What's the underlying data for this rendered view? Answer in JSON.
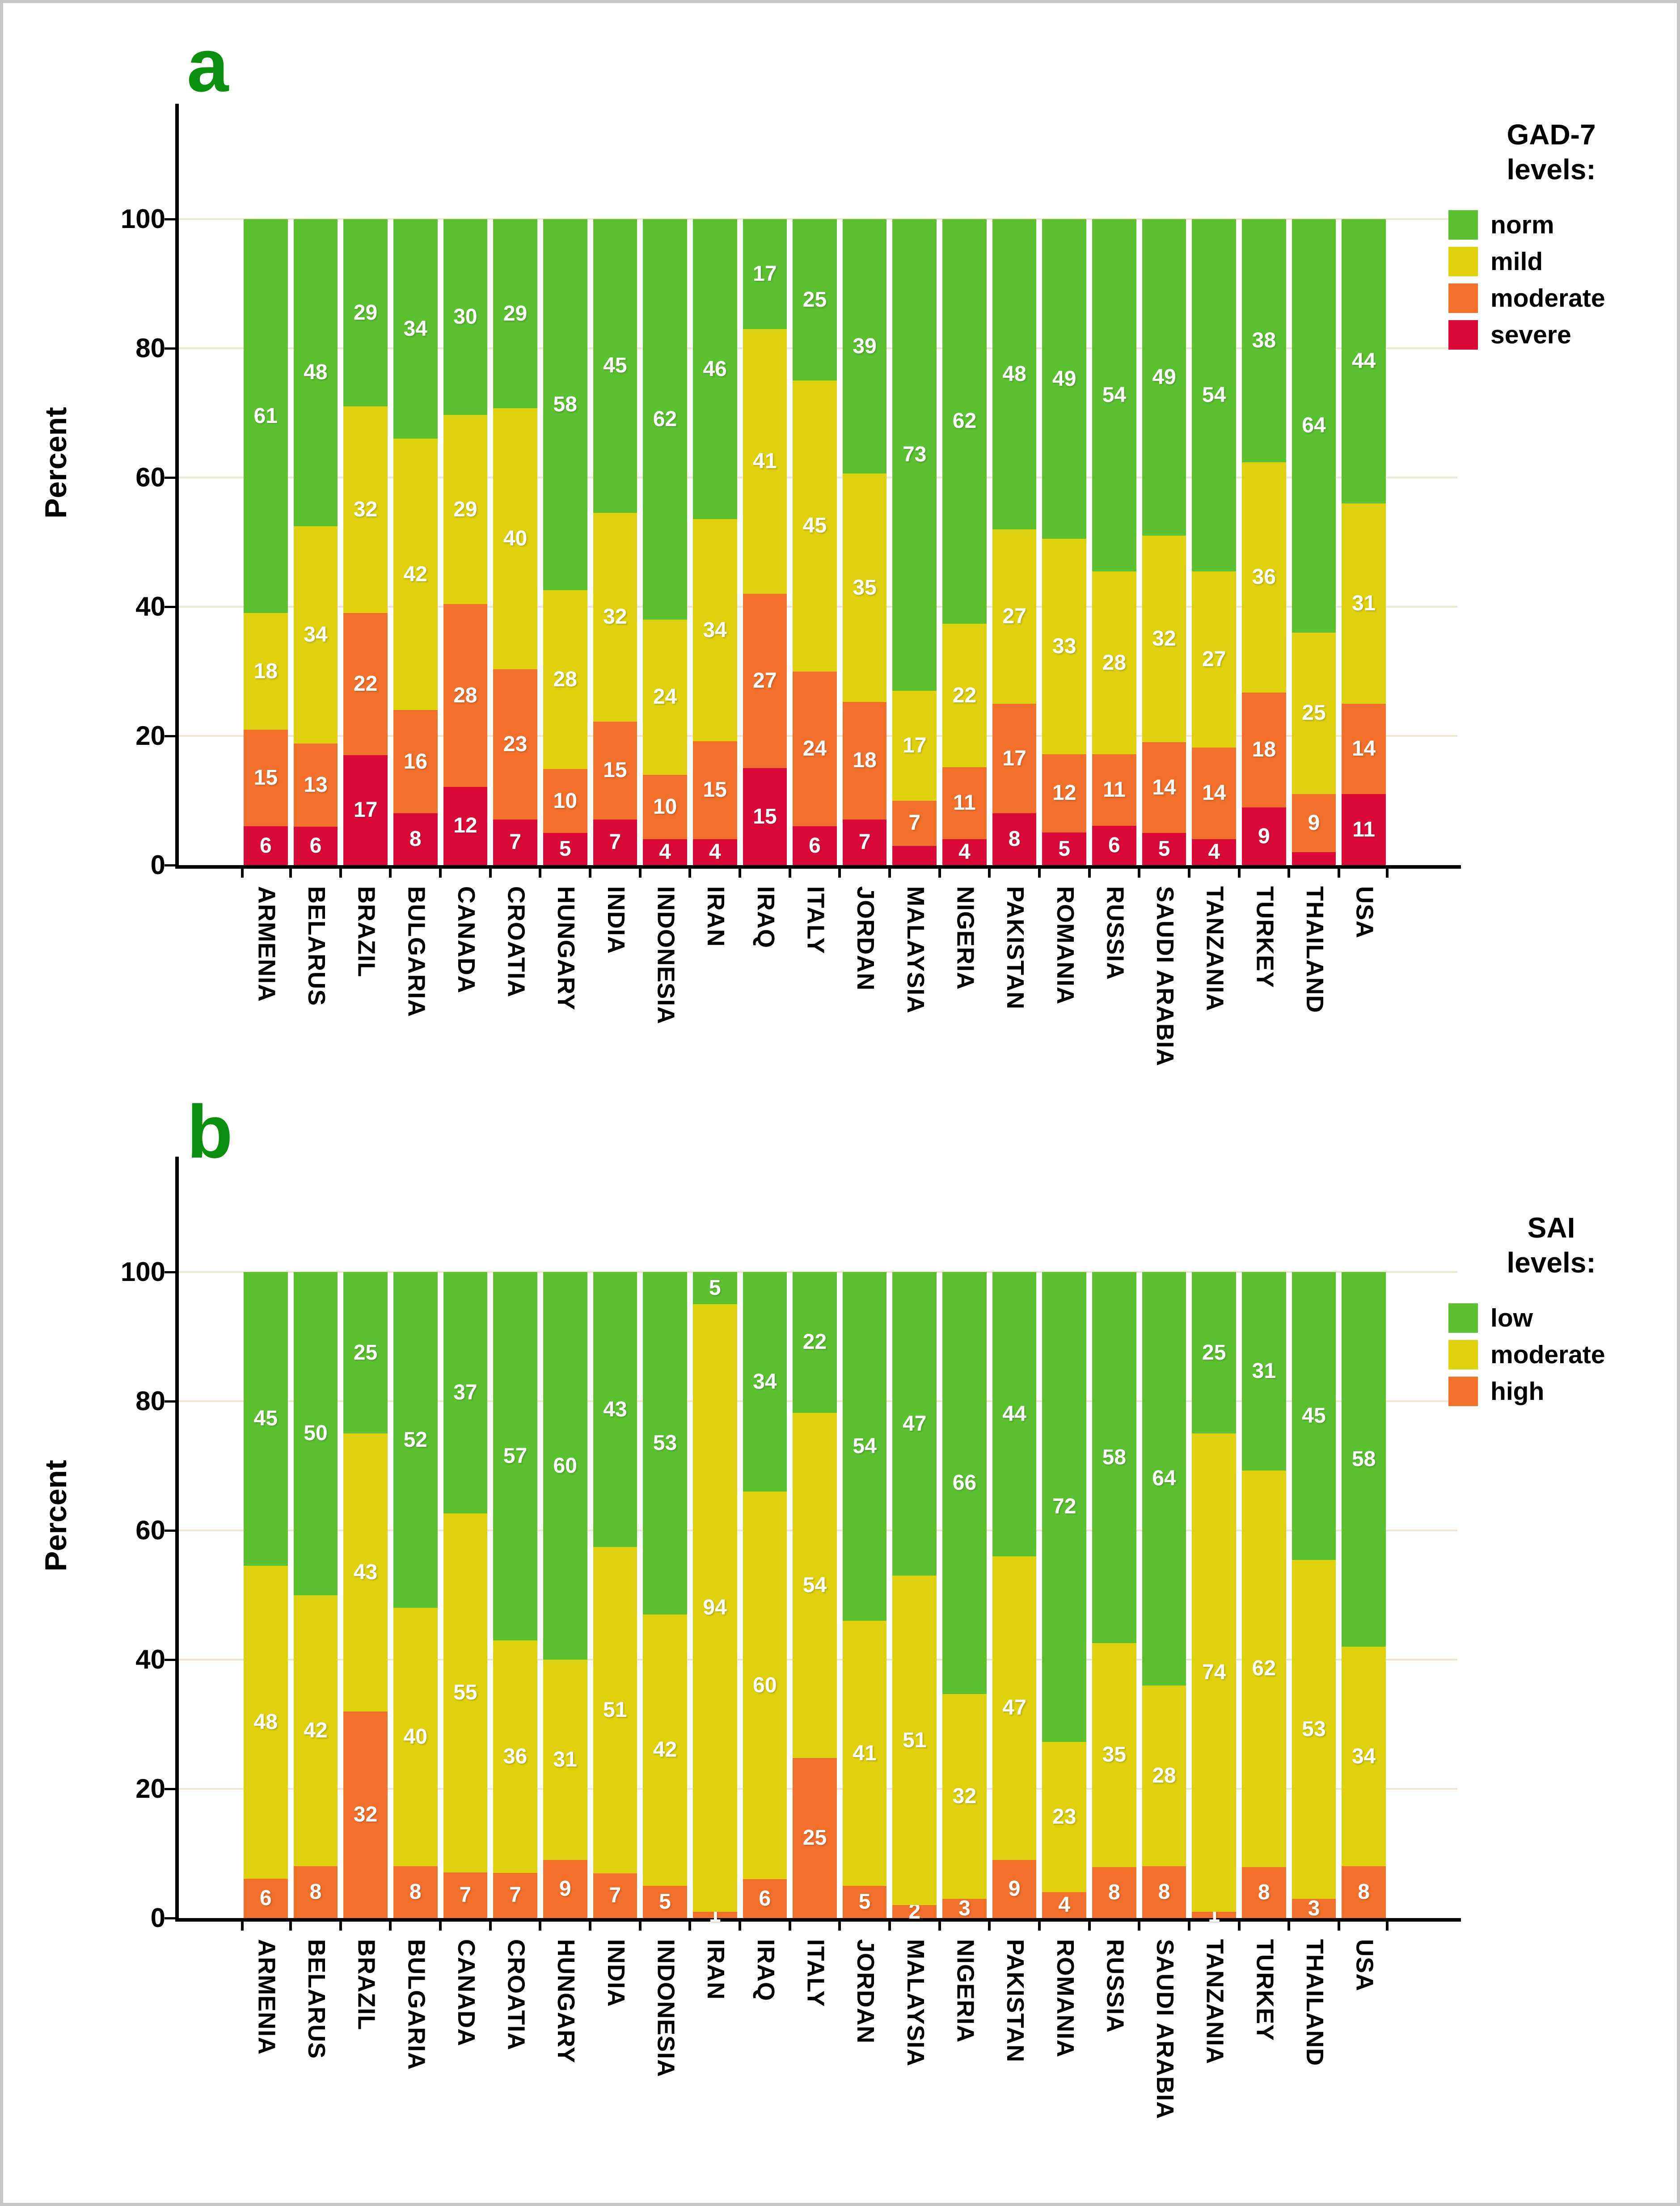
{
  "y_axis": {
    "title": "Percent",
    "ticks": [
      0,
      20,
      40,
      60,
      80,
      100
    ],
    "range": [
      0,
      100
    ]
  },
  "styles": {
    "norm_low_green": "#5bc130",
    "mild_moderate_yellow": "#dfd10d",
    "moderate_high_orange": "#f2702b",
    "severe_red": "#da0938",
    "panel_letter_green": "#0a8f0f",
    "gridline_cream": "#efe7d0",
    "axis_black": "#000000",
    "value_label_white": "#ffffff",
    "frame_gray": "#c7c7c7"
  },
  "panels": [
    {
      "letter": "a",
      "legend_title_line1": "GAD-7",
      "legend_title_line2": "levels:"
    },
    {
      "letter": "b",
      "legend_title_line1": "SAI",
      "legend_title_line2": "levels:"
    }
  ],
  "chart_data": [
    {
      "type": "bar",
      "stacked": true,
      "units": "percent",
      "title": "GAD-7 levels:",
      "ylabel": "Percent",
      "ylim": [
        0,
        100
      ],
      "grid": "horizontal",
      "legend_position": "right",
      "categories": [
        "ARMENIA",
        "BELARUS",
        "BRAZIL",
        "BULGARIA",
        "CANADA",
        "CROATIA",
        "HUNGARY",
        "INDIA",
        "INDONESIA",
        "IRAN",
        "IRAQ",
        "ITALY",
        "JORDAN",
        "MALAYSIA",
        "NIGERIA",
        "PAKISTAN",
        "ROMANIA",
        "RUSSIA",
        "SAUDI ARABIA",
        "TANZANIA",
        "TURKEY",
        "THAILAND",
        "USA"
      ],
      "series": [
        {
          "name": "norm",
          "color": "#5bc130",
          "values": [
            61,
            48,
            29,
            34,
            30,
            29,
            58,
            45,
            62,
            46,
            17,
            25,
            39,
            73,
            62,
            48,
            49,
            54,
            49,
            54,
            38,
            64,
            44
          ]
        },
        {
          "name": "mild",
          "color": "#dfd10d",
          "values": [
            18,
            34,
            32,
            42,
            29,
            40,
            28,
            32,
            24,
            34,
            41,
            45,
            35,
            17,
            22,
            27,
            33,
            28,
            32,
            27,
            36,
            25,
            31
          ]
        },
        {
          "name": "moderate",
          "color": "#f2702b",
          "values": [
            15,
            13,
            22,
            16,
            28,
            23,
            10,
            15,
            10,
            15,
            27,
            24,
            18,
            7,
            11,
            17,
            12,
            11,
            14,
            14,
            18,
            9,
            14
          ]
        },
        {
          "name": "severe",
          "color": "#da0938",
          "values": [
            6,
            6,
            17,
            8,
            12,
            7,
            5,
            7,
            4,
            4,
            15,
            6,
            7,
            3,
            4,
            8,
            5,
            6,
            5,
            4,
            9,
            2,
            11
          ],
          "unlabeled_indices": [
            13,
            21
          ]
        }
      ]
    },
    {
      "type": "bar",
      "stacked": true,
      "units": "percent",
      "title": "SAI levels:",
      "ylabel": "Percent",
      "ylim": [
        0,
        100
      ],
      "grid": "horizontal",
      "legend_position": "right",
      "categories": [
        "ARMENIA",
        "BELARUS",
        "BRAZIL",
        "BULGARIA",
        "CANADA",
        "CROATIA",
        "HUNGARY",
        "INDIA",
        "INDONESIA",
        "IRAN",
        "IRAQ",
        "ITALY",
        "JORDAN",
        "MALAYSIA",
        "NIGERIA",
        "PAKISTAN",
        "ROMANIA",
        "RUSSIA",
        "SAUDI ARABIA",
        "TANZANIA",
        "TURKEY",
        "THAILAND",
        "USA"
      ],
      "series": [
        {
          "name": "low",
          "color": "#5bc130",
          "values": [
            45,
            50,
            25,
            52,
            37,
            57,
            60,
            43,
            53,
            5,
            34,
            22,
            54,
            47,
            66,
            44,
            72,
            58,
            64,
            25,
            31,
            45,
            58
          ]
        },
        {
          "name": "moderate",
          "color": "#dfd10d",
          "values": [
            48,
            42,
            43,
            40,
            55,
            36,
            31,
            51,
            42,
            94,
            60,
            54,
            41,
            51,
            32,
            47,
            23,
            35,
            28,
            74,
            62,
            53,
            34
          ]
        },
        {
          "name": "high",
          "color": "#f2702b",
          "values": [
            6,
            8,
            32,
            8,
            7,
            7,
            9,
            7,
            5,
            1,
            6,
            25,
            5,
            2,
            3,
            9,
            4,
            8,
            8,
            1,
            8,
            3,
            8
          ]
        }
      ]
    }
  ]
}
